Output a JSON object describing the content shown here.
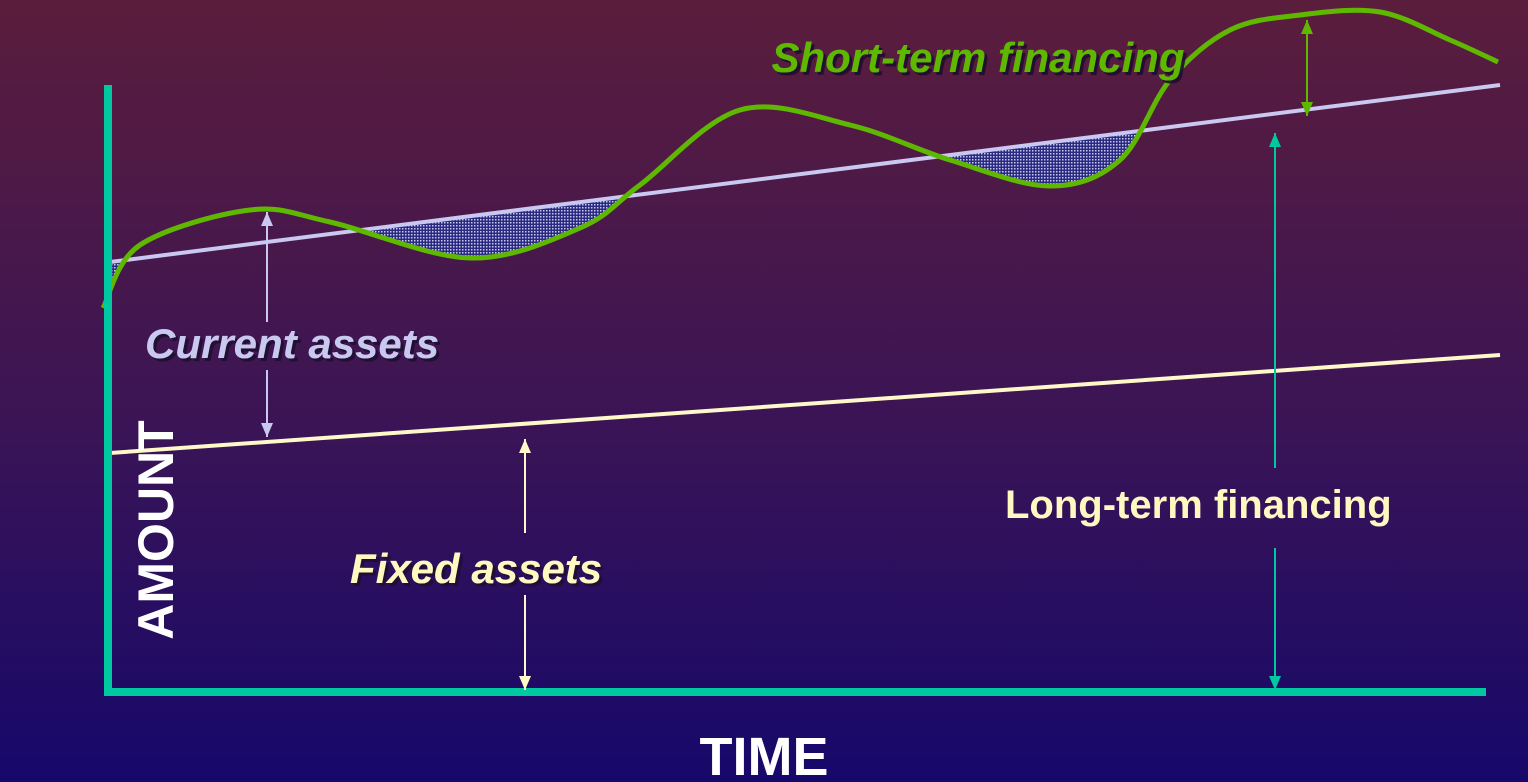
{
  "labels": {
    "short_term": "Short-term financing",
    "current_assets": "Current assets",
    "fixed_assets": "Fixed assets",
    "long_term": "Long-term financing",
    "y_axis": "AMOUNT",
    "x_axis": "TIME"
  }
}
